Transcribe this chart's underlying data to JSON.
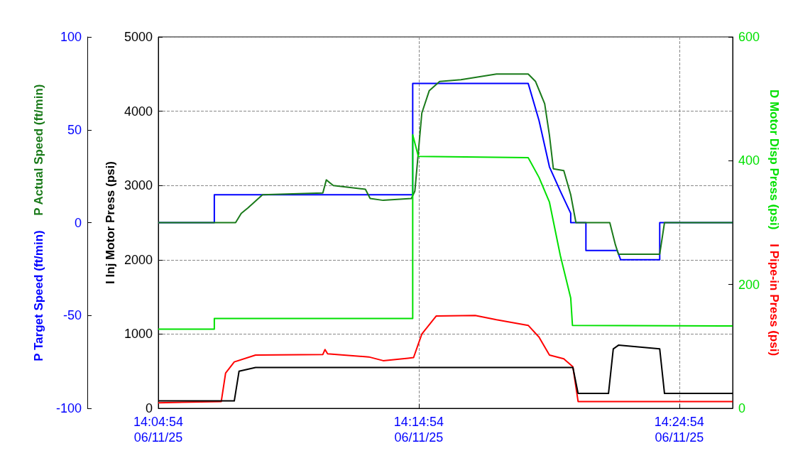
{
  "chart_data": {
    "type": "line",
    "ylabel": [
      "P Target Speed (ft/min)",
      "P Actual Speed (ft/min)"
    ],
    "y2label": "I Inj Motor Press (psi)",
    "y3label": [
      "D Motor Disp Press (psi)",
      "I Pipe-in Press (psi)"
    ],
    "xlim": [
      "--06-11T14:04:54",
      "--06-11T14:26:57"
    ],
    "xticks": [
      {
        "value": "--06-11T14:04:54",
        "label": "14:04:54\n06/11/25"
      },
      {
        "value": "--06-11T14:14:54",
        "label": "14:14:54\n06/11/25"
      },
      {
        "value": "--06-11T14:24:54",
        "label": "14:24:54\n06/11/25"
      }
    ],
    "ylim": [
      -100,
      100
    ],
    "yticks": [
      -100,
      -50,
      0,
      50,
      100
    ],
    "y2lim": [
      0,
      5000
    ],
    "y2ticks": [
      0,
      1000,
      2000,
      3000,
      4000,
      5000
    ],
    "y3lim": [
      0,
      600
    ],
    "y3ticks": [
      0,
      200,
      400,
      600
    ],
    "grid": true,
    "line_style": "solid",
    "marker": "none",
    "series": [
      {
        "color": "#0000ff",
        "axis": "y",
        "x": [
          "--06-11T14:04:54",
          "--06-11T14:07:03",
          "--06-11T14:07:03",
          "--06-11T14:14:40",
          "--06-11T14:14:40",
          "--06-11T14:19:06",
          "--06-11T14:19:31",
          "--06-11T14:19:55",
          "--06-11T14:20:20",
          "--06-11T14:20:44",
          "--06-11T14:20:44",
          "--06-11T14:21:19",
          "--06-11T14:21:19",
          "--06-11T14:22:31",
          "--06-11T14:22:39",
          "--06-11T14:24:09",
          "--06-11T14:24:09",
          "--06-11T14:26:57"
        ],
        "values": [
          0,
          0,
          15,
          15,
          75,
          75,
          55,
          30,
          17,
          5,
          0,
          0,
          -15,
          -15,
          -20,
          -20,
          0,
          0
        ]
      },
      {
        "color": "#1a7a1a",
        "axis": "y",
        "x": [
          "--06-11T14:04:54",
          "--06-11T14:07:52",
          "--06-11T14:08:05",
          "--06-11T14:08:21",
          "--06-11T14:08:54",
          "--06-11T14:11:13",
          "--06-11T14:11:21",
          "--06-11T14:11:37",
          "--06-11T14:12:51",
          "--06-11T14:13:02",
          "--06-11T14:13:32",
          "--06-11T14:14:37",
          "--06-11T14:14:45",
          "--06-11T14:15:01",
          "--06-11T14:15:18",
          "--06-11T14:15:42",
          "--06-11T14:16:31",
          "--06-11T14:17:53",
          "--06-11T14:19:06",
          "--06-11T14:19:23",
          "--06-11T14:19:44",
          "--06-11T14:19:55",
          "--06-11T14:20:04",
          "--06-11T14:20:28",
          "--06-11T14:20:44",
          "--06-11T14:20:56",
          "--06-11T14:22:14",
          "--06-11T14:22:27",
          "--06-11T14:22:34",
          "--06-11T14:24:09",
          "--06-11T14:24:20",
          "--06-11T14:26:57"
        ],
        "values": [
          0,
          0,
          5,
          8,
          15,
          16,
          23,
          20,
          18,
          13,
          12,
          13,
          17,
          59,
          71,
          76,
          77,
          80,
          80,
          76,
          64,
          47,
          29,
          28,
          15,
          0,
          0,
          -12,
          -17,
          -17,
          0,
          0
        ]
      },
      {
        "color": "#00e000",
        "axis": "y3",
        "x": [
          "--06-11T14:04:54",
          "--06-11T14:07:03",
          "--06-11T14:07:03",
          "--06-11T14:14:40",
          "--06-11T14:14:40",
          "--06-11T14:14:53",
          "--06-11T14:19:06",
          "--06-11T14:19:31",
          "--06-11T14:19:55",
          "--06-11T14:20:20",
          "--06-11T14:20:44",
          "--06-11T14:20:48",
          "--06-11T14:26:57"
        ],
        "values": [
          128,
          128,
          145,
          145,
          442,
          407,
          405,
          373,
          333,
          247,
          178,
          134,
          133
        ]
      },
      {
        "color": "#ff0000",
        "axis": "y3",
        "x": [
          "--06-11T14:04:54",
          "--06-11T14:07:19",
          "--06-11T14:07:29",
          "--06-11T14:07:49",
          "--06-11T14:08:38",
          "--06-11T14:11:13",
          "--06-11T14:11:18",
          "--06-11T14:11:24",
          "--06-11T14:12:59",
          "--06-11T14:13:32",
          "--06-11T14:14:29",
          "--06-11T14:14:42",
          "--06-11T14:15:01",
          "--06-11T14:15:34",
          "--06-11T14:17:04",
          "--06-11T14:17:53",
          "--06-11T14:19:06",
          "--06-11T14:19:31",
          "--06-11T14:19:55",
          "--06-11T14:20:28",
          "--06-11T14:20:49",
          "--06-11T14:21:01",
          "--06-11T14:26:57"
        ],
        "values": [
          9,
          11,
          57,
          75,
          86,
          87,
          95,
          88,
          83,
          77,
          81,
          82,
          120,
          149,
          150,
          143,
          134,
          115,
          86,
          80,
          67,
          11,
          11
        ]
      },
      {
        "color": "#000000",
        "axis": "y2",
        "x": [
          "--06-11T14:04:54",
          "--06-11T14:05:38",
          "--06-11T14:07:49",
          "--06-11T14:08:00",
          "--06-11T14:08:38",
          "--06-11T14:20:36",
          "--06-11T14:20:49",
          "--06-11T14:21:01",
          "--06-11T14:22:11",
          "--06-11T14:22:22",
          "--06-11T14:22:34",
          "--06-11T14:24:09",
          "--06-11T14:24:20",
          "--06-11T14:26:57"
        ],
        "values": [
          100,
          100,
          100,
          500,
          550,
          550,
          550,
          200,
          200,
          800,
          850,
          800,
          200,
          200
        ]
      }
    ]
  }
}
